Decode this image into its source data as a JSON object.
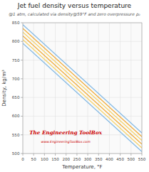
{
  "chart_data": {
    "type": "line",
    "title": "Jet fuel density versus temperature",
    "subtitle": "@1 atm, calculated via density@59°F and zero overpressure ρ₀",
    "x_label": "Temperature, °F",
    "y_label": "Density, kg/m³",
    "x": [
      0,
      550
    ],
    "series": [
      {
        "color": "#7eb6e3",
        "values": [
          845,
          555.15
        ]
      },
      {
        "color": "#f0a830",
        "values": [
          835,
          545.15
        ]
      },
      {
        "color": "#f5d060",
        "values": [
          825,
          535.15
        ]
      },
      {
        "color": "#f0a830",
        "values": [
          815,
          525.15
        ]
      },
      {
        "color": "#f5d060",
        "values": [
          805,
          515.15
        ]
      },
      {
        "color": "#7eb6e3",
        "values": [
          795,
          505.15
        ]
      }
    ],
    "xlim": [
      0,
      550
    ],
    "ylim": [
      500,
      850
    ],
    "xticks": [
      0,
      50,
      100,
      150,
      200,
      250,
      300,
      350,
      400,
      450,
      500,
      550
    ],
    "yticks": [
      500,
      550,
      600,
      650,
      700,
      750,
      800,
      850
    ],
    "grid": true,
    "annotations": [
      {
        "text": "The Engineering ToolBox",
        "color": "#cc0000"
      },
      {
        "text": "www.EngineeringToolBox.com",
        "color": "#cc0000"
      }
    ]
  }
}
